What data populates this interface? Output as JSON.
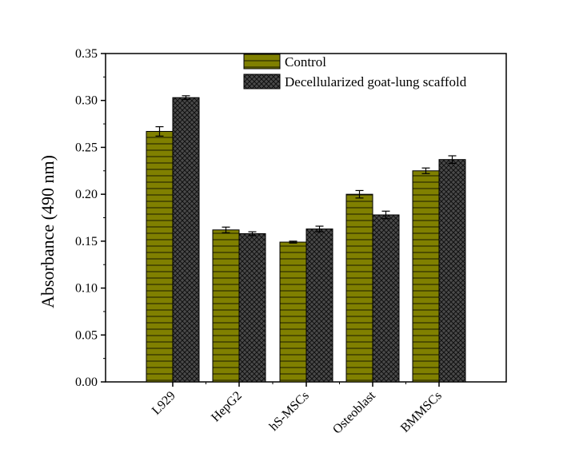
{
  "chart_data": {
    "type": "bar",
    "title": "",
    "xlabel": "",
    "ylabel": "Absorbance (490 nm)",
    "ylim": [
      0,
      0.35
    ],
    "yticks": [
      "0.00",
      "0.05",
      "0.10",
      "0.15",
      "0.20",
      "0.25",
      "0.30",
      "0.35"
    ],
    "ytick_values": [
      0,
      0.05,
      0.1,
      0.15,
      0.2,
      0.25,
      0.3,
      0.35
    ],
    "categories": [
      "L929",
      "HepG2",
      "hS-MSCs",
      "Osteoblast",
      "BMMSCs"
    ],
    "series": [
      {
        "name": "Control",
        "color": "#808000",
        "pattern": "horizontal-lines",
        "values": [
          0.267,
          0.162,
          0.149,
          0.2,
          0.225
        ],
        "errors": [
          0.005,
          0.003,
          0.001,
          0.004,
          0.003
        ]
      },
      {
        "name": "Decellularized goat-lung scaffold",
        "color": "#404040",
        "pattern": "crosshatch",
        "values": [
          0.303,
          0.158,
          0.163,
          0.178,
          0.237
        ],
        "errors": [
          0.002,
          0.002,
          0.003,
          0.004,
          0.004
        ]
      }
    ],
    "legend_position": "top"
  }
}
